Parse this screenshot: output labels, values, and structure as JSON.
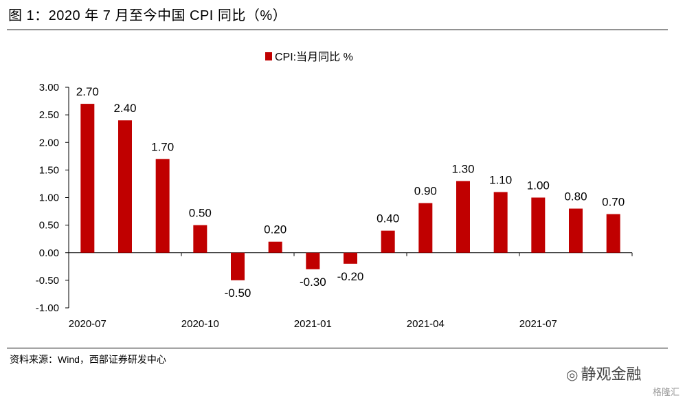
{
  "header": {
    "title": "图 1：2020 年 7 月至今中国 CPI 同比（%）"
  },
  "footer": {
    "source": "资料来源：Wind，西部证券研发中心",
    "brand": "静观金融",
    "watermark": "格隆汇"
  },
  "chart_data": {
    "type": "bar",
    "legend": "CPI:当月同比 %",
    "legend_position": "top-center",
    "color": "#c00000",
    "categories": [
      "2020-07",
      "2020-08",
      "2020-09",
      "2020-10",
      "2020-11",
      "2020-12",
      "2021-01",
      "2021-02",
      "2021-03",
      "2021-04",
      "2021-05",
      "2021-06",
      "2021-07",
      "2021-08",
      "2021-09"
    ],
    "values": [
      2.7,
      2.4,
      1.7,
      0.5,
      -0.5,
      0.2,
      -0.3,
      -0.2,
      0.4,
      0.9,
      1.3,
      1.1,
      1.0,
      0.8,
      0.7
    ],
    "data_labels": [
      "2.70",
      "2.40",
      "1.70",
      "0.50",
      "-0.50",
      "0.20",
      "-0.30",
      "-0.20",
      "0.40",
      "0.90",
      "1.30",
      "1.10",
      "1.00",
      "0.80",
      "0.70"
    ],
    "x_tick_labels": [
      "2020-07",
      "2020-10",
      "2021-01",
      "2021-04",
      "2021-07"
    ],
    "y_ticks": [
      "3.00",
      "2.50",
      "2.00",
      "1.50",
      "1.00",
      "0.50",
      "0.00",
      "-0.50",
      "-1.00"
    ],
    "ylim": [
      -1.0,
      3.0
    ],
    "grid": false
  }
}
